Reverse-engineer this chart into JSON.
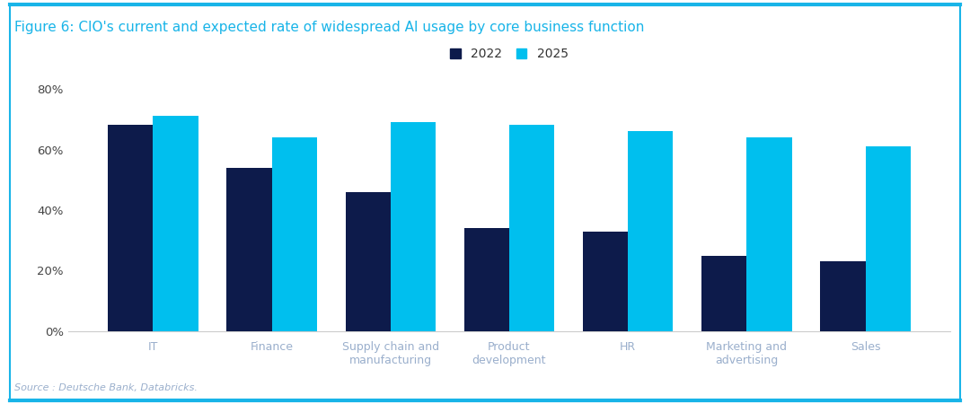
{
  "title": "Figure 6: CIO's current and expected rate of widespread AI usage by core business function",
  "categories": [
    "IT",
    "Finance",
    "Supply chain and\nmanufacturing",
    "Product\ndevelopment",
    "HR",
    "Marketing and\nadvertising",
    "Sales"
  ],
  "values_2022": [
    0.68,
    0.54,
    0.46,
    0.34,
    0.33,
    0.25,
    0.23
  ],
  "values_2025": [
    0.71,
    0.64,
    0.69,
    0.68,
    0.66,
    0.64,
    0.61
  ],
  "color_2022": "#0d1b4b",
  "color_2025": "#00bfee",
  "legend_2022": "2022",
  "legend_2025": "2025",
  "ylim": [
    0,
    0.8
  ],
  "yticks": [
    0.0,
    0.2,
    0.4,
    0.6,
    0.8
  ],
  "ytick_labels": [
    "0%",
    "20%",
    "40%",
    "60%",
    "80%"
  ],
  "source_text": "Source : Deutsche Bank, Databricks.",
  "background_color": "#ffffff",
  "border_color": "#18b4e8",
  "title_color": "#18b4e8",
  "tick_label_color": "#9aafcc",
  "bar_width": 0.38
}
